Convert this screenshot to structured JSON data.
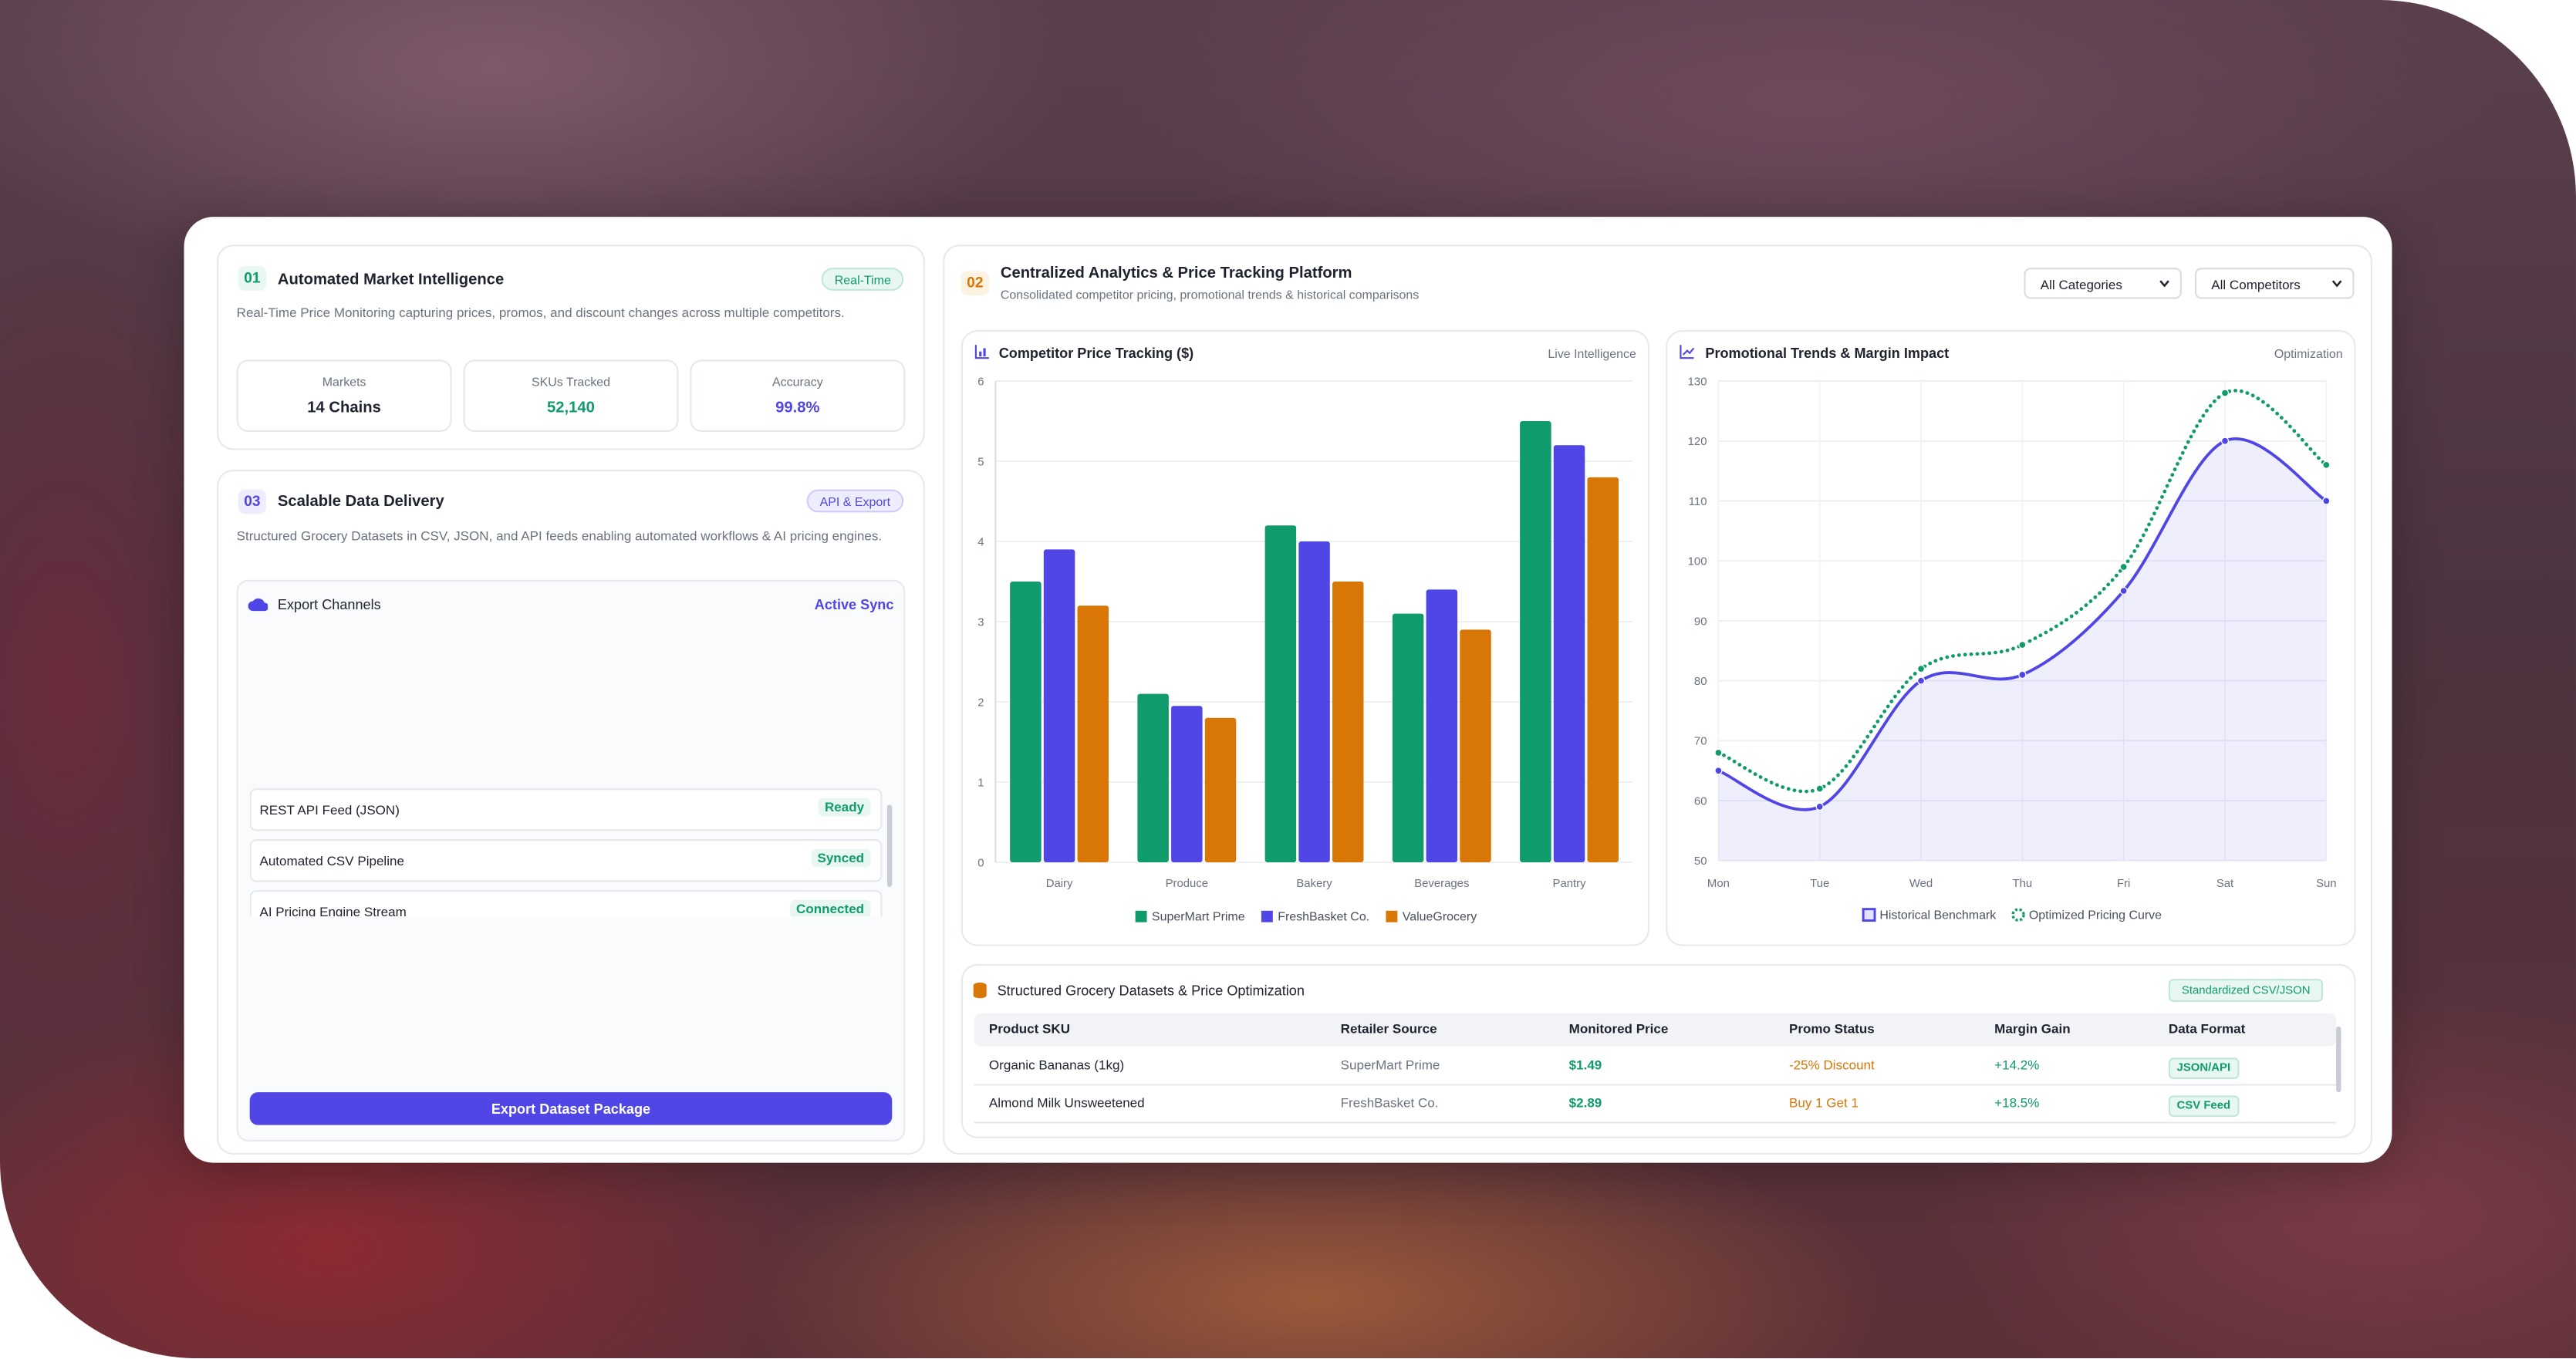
{
  "cards": [
    {
      "number": "01",
      "title": "Automated Market Intelligence",
      "badge": "Real-Time",
      "description": "Real-Time Price Monitoring capturing prices, promos, and discount changes across multiple competitors.",
      "stats": [
        {
          "label": "Markets",
          "value": "14 Chains"
        },
        {
          "label": "SKUs Tracked",
          "value": "52,140"
        },
        {
          "label": "Accuracy",
          "value": "99.8%"
        }
      ]
    },
    {
      "number": "03",
      "title": "Scalable Data Delivery",
      "badge": "API & Export",
      "description": "Structured Grocery Datasets in CSV, JSON, and API feeds enabling automated workflows & AI pricing engines.",
      "channels_title": "Export Channels",
      "sync": "Active Sync",
      "channels": [
        {
          "name": "REST API Feed (JSON)",
          "status": "Ready"
        },
        {
          "name": "Automated CSV Pipeline",
          "status": "Synced"
        },
        {
          "name": "AI Pricing Engine Stream",
          "status": "Connected"
        }
      ],
      "button": "Export Dataset Package"
    }
  ],
  "platform": {
    "number": "02",
    "title": "Centralized Analytics & Price Tracking Platform",
    "subtitle": "Consolidated competitor pricing, promotional trends & historical comparisons",
    "filters": [
      "All Categories",
      "All Competitors"
    ]
  },
  "chart_data": [
    {
      "type": "bar",
      "title": "Competitor Price Tracking ($)",
      "tag": "Live Intelligence",
      "categories": [
        "Dairy",
        "Produce",
        "Bakery",
        "Beverages",
        "Pantry"
      ],
      "series": [
        {
          "name": "SuperMart Prime",
          "color": "#0f9b6c",
          "values": [
            3.5,
            2.1,
            4.2,
            3.1,
            5.5
          ]
        },
        {
          "name": "FreshBasket Co.",
          "color": "#4f46e5",
          "values": [
            3.9,
            1.95,
            4.0,
            3.4,
            5.2
          ]
        },
        {
          "name": "ValueGrocery",
          "color": "#d97706",
          "values": [
            3.2,
            1.8,
            3.5,
            2.9,
            4.8
          ]
        }
      ],
      "ylim": [
        0,
        6
      ],
      "yticks": [
        0,
        1,
        2,
        3,
        4,
        5,
        6
      ],
      "grid": true
    },
    {
      "type": "line",
      "title": "Promotional Trends & Margin Impact",
      "tag": "Optimization",
      "categories": [
        "Mon",
        "Tue",
        "Wed",
        "Thu",
        "Fri",
        "Sat",
        "Sun"
      ],
      "series": [
        {
          "name": "Historical Benchmark",
          "color": "#4f46e5",
          "line_style": "solid",
          "area": true,
          "values": [
            65,
            59,
            80,
            81,
            95,
            120,
            110
          ]
        },
        {
          "name": "Optimized Pricing Curve",
          "color": "#0f9b6c",
          "line_style": "dotted",
          "area": false,
          "values": [
            68,
            62,
            82,
            86,
            99,
            128,
            116
          ]
        }
      ],
      "ylim": [
        50,
        130
      ],
      "yticks": [
        50,
        60,
        70,
        80,
        90,
        100,
        110,
        120,
        130
      ],
      "grid": true
    }
  ],
  "table": {
    "title": "Structured Grocery Datasets & Price Optimization",
    "badge": "Standardized CSV/JSON",
    "columns": [
      "Product SKU",
      "Retailer Source",
      "Monitored Price",
      "Promo Status",
      "Margin Gain",
      "Data Format"
    ],
    "rows": [
      [
        "Organic Bananas (1kg)",
        "SuperMart Prime",
        "$1.49",
        "-25% Discount",
        "+14.2%",
        "JSON/API"
      ],
      [
        "Almond Milk Unsweetened",
        "FreshBasket Co.",
        "$2.89",
        "Buy 1 Get 1",
        "+18.5%",
        "CSV Feed"
      ]
    ]
  }
}
